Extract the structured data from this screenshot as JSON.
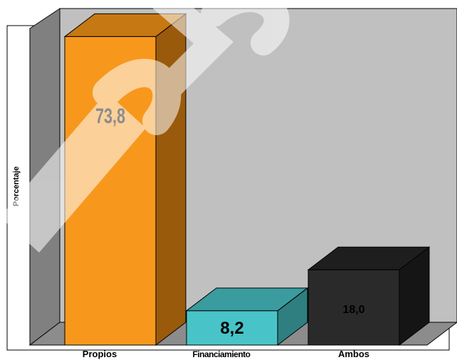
{
  "chart_data": {
    "type": "bar",
    "style": "3d-column",
    "categories": [
      "Propios",
      "Financiamiento",
      "Ambos"
    ],
    "values": [
      73.8,
      8.2,
      18.0
    ],
    "data_labels": [
      "73,8",
      "8,2",
      "18,0"
    ],
    "title": "",
    "xlabel": "",
    "ylabel": "Porcentaje",
    "ylim": [
      0,
      80
    ],
    "grid": false,
    "legend": "none",
    "colors": {
      "bars": [
        "#f7981d",
        "#48c4c8",
        "#2a2a2a"
      ],
      "bar_sides": [
        "#9a5a0c",
        "#2f7f80",
        "#151515"
      ],
      "bar_tops": [
        "#c67812",
        "#3a9c9f",
        "#1e1e1e"
      ],
      "back_wall": "#c0c0c0",
      "side_wall": "#808080",
      "floor": "#8c8c8c"
    }
  }
}
